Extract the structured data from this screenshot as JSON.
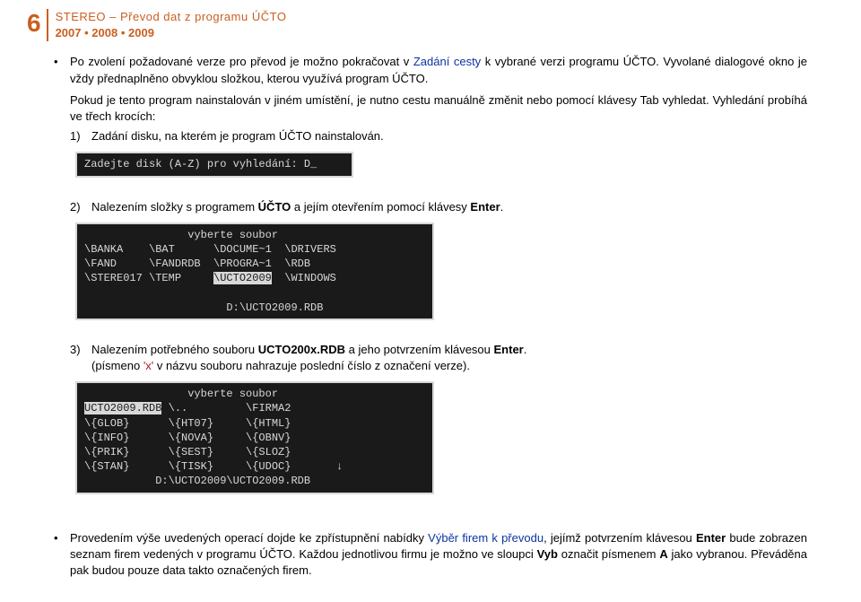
{
  "header": {
    "page_number": "6",
    "title_top": "STEREO – Převod dat z programu ÚČTO",
    "year1": "2007",
    "year2": "2008",
    "year3": "2009"
  },
  "b1": {
    "pre": "Po zvolení požadované verze pro převod je možno pokračovat v ",
    "link": "Zadání cesty",
    "post": " k vybrané verzi programu ÚČTO. Vyvolané dialogové okno je vždy přednaplněno obvyklou složkou, kterou využívá program ÚČTO."
  },
  "p2": "Pokud je tento program nainstalován v jiném umístění, je nutno cestu manuálně změnit nebo pomocí klávesy Tab vyhledat. Vyhledání probíhá ve třech krocích:",
  "i1": {
    "num": "1)",
    "text": "Zadání disku, na kterém je program ÚČTO nainstalován."
  },
  "dos1": "Zadejte disk (A-Z) pro vyhledání: D_",
  "i2": {
    "num": "2)",
    "pre": "Nalezením složky s programem ",
    "bold1": "ÚČTO",
    "mid": " a jejím otevřením pomocí klávesy ",
    "bold2": "Enter",
    "post": "."
  },
  "dos2": {
    "title": "vyberte soubor",
    "r1a": "\\BANKA",
    "r1b": "\\BAT",
    "r1c": "\\DOCUME~1",
    "r1d": "\\DRIVERS",
    "r2a": "\\FAND",
    "r2b": "\\FANDRDB",
    "r2c": "\\PROGRA~1",
    "r2d": "\\RDB",
    "r3a": "\\STERE017",
    "r3b": "\\TEMP",
    "r3c": "\\UCTO2009",
    "r3d": "\\WINDOWS",
    "path": "D:\\UCTO2009.RDB"
  },
  "i3": {
    "num": "3)",
    "pre": "Nalezením potřebného souboru ",
    "bold1": "UCTO200x.RDB",
    "mid": " a jeho potvrzením klávesou ",
    "bold2": "Enter",
    "post": ".",
    "note_pre": "(písmeno ",
    "note_x": "'x'",
    "note_post": " v názvu souboru nahrazuje poslední číslo z označení verze)."
  },
  "dos3": {
    "title": "vyberte soubor",
    "r1a": "UCTO2009.RDB",
    "r1b": "\\..",
    "r1c": "\\FIRMA2",
    "r2a": "\\{GLOB}",
    "r2b": "\\{HT07}",
    "r2c": "\\{HTML}",
    "r3a": "\\{INFO}",
    "r3b": "\\{NOVA}",
    "r3c": "\\{OBNV}",
    "r4a": "\\{PRIK}",
    "r4b": "\\{SEST}",
    "r4c": "\\{SLOZ}",
    "r5a": "\\{STAN}",
    "r5b": "\\{TISK}",
    "r5c": "\\{UDOC}",
    "arrow": "↓",
    "path": "D:\\UCTO2009\\UCTO2009.RDB"
  },
  "b2": {
    "pre": "Provedením výše uvedených operací dojde ke zpřístupnění nabídky ",
    "link": "Výběr firem k převodu",
    "mid1": ", jejímž potvrzením klávesou ",
    "bold1": "Enter",
    "mid2": " bude zobrazen seznam firem vedených v programu ÚČTO. Každou jednotlivou firmu je možno ve sloupci ",
    "bold2": "Vyb",
    "mid3": " označit písmenem ",
    "bold3": "A",
    "post": " jako vybranou. Převáděna pak budou pouze data takto označených firem."
  }
}
